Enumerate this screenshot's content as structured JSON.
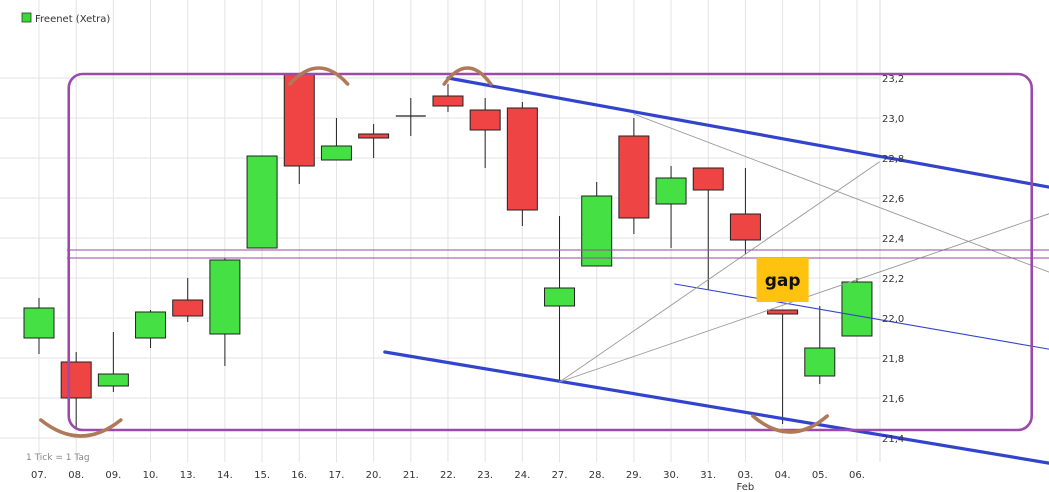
{
  "legend": {
    "label": "Freenet (Xetra)",
    "swatch_color": "#33dd33"
  },
  "note": "1 Tick = 1 Tag",
  "colors": {
    "up": "#44e044",
    "down": "#ee4444",
    "wick": "#222222",
    "channel": "#3344cc",
    "frame": "#9a4aaa",
    "arc": "#b07a5a",
    "fan": "#999999",
    "gap_fill": "#ffc20e",
    "grid": "#e3e3e3"
  },
  "chart_data": {
    "type": "candlestick",
    "title": "Freenet (Xetra)",
    "xlabel": "",
    "ylabel": "",
    "ylim": [
      21.35,
      23.3
    ],
    "grid": true,
    "categories": [
      "07.",
      "08.",
      "09.",
      "10.",
      "13.",
      "14.",
      "15.",
      "16.",
      "17.",
      "20.",
      "21.",
      "22.",
      "23.",
      "24.",
      "27.",
      "28.",
      "29.",
      "30.",
      "31.",
      "03.",
      "04.",
      "05.",
      "06."
    ],
    "x_sublabels": [
      {
        "index": 19,
        "text": "Feb"
      }
    ],
    "y_ticks": [
      21.4,
      21.6,
      21.8,
      22.0,
      22.2,
      22.4,
      22.6,
      22.8,
      23.0,
      23.2
    ],
    "y_tick_labels": [
      "21,4",
      "21,6",
      "21,8",
      "22,0",
      "22,2",
      "22,4",
      "22,6",
      "22,8",
      "23,0",
      "23,2"
    ],
    "ohlc": [
      {
        "open": 21.9,
        "high": 22.1,
        "low": 21.82,
        "close": 22.05
      },
      {
        "open": 21.78,
        "high": 21.83,
        "low": 21.45,
        "close": 21.6
      },
      {
        "open": 21.66,
        "high": 21.93,
        "low": 21.63,
        "close": 21.72
      },
      {
        "open": 21.9,
        "high": 22.04,
        "low": 21.85,
        "close": 22.03
      },
      {
        "open": 22.09,
        "high": 22.2,
        "low": 21.98,
        "close": 22.01
      },
      {
        "open": 21.92,
        "high": 22.3,
        "low": 21.76,
        "close": 22.29
      },
      {
        "open": 22.35,
        "high": 22.81,
        "low": 22.35,
        "close": 22.81
      },
      {
        "open": 23.22,
        "high": 23.22,
        "low": 22.67,
        "close": 22.76
      },
      {
        "open": 22.79,
        "high": 23.0,
        "low": 22.79,
        "close": 22.86
      },
      {
        "open": 22.92,
        "high": 22.97,
        "low": 22.8,
        "close": 22.9
      },
      {
        "open": 23.01,
        "high": 23.1,
        "low": 22.91,
        "close": 23.01
      },
      {
        "open": 23.11,
        "high": 23.17,
        "low": 23.03,
        "close": 23.06
      },
      {
        "open": 23.04,
        "high": 23.1,
        "low": 22.75,
        "close": 22.94
      },
      {
        "open": 23.05,
        "high": 23.08,
        "low": 22.46,
        "close": 22.54
      },
      {
        "open": 22.06,
        "high": 22.51,
        "low": 21.68,
        "close": 22.15
      },
      {
        "open": 22.26,
        "high": 22.68,
        "low": 22.26,
        "close": 22.61
      },
      {
        "open": 22.91,
        "high": 23.0,
        "low": 22.42,
        "close": 22.5
      },
      {
        "open": 22.57,
        "high": 22.76,
        "low": 22.35,
        "close": 22.7
      },
      {
        "open": 22.75,
        "high": 22.75,
        "low": 22.14,
        "close": 22.64
      },
      {
        "open": 22.52,
        "high": 22.75,
        "low": 22.32,
        "close": 22.39
      },
      {
        "open": 22.04,
        "high": 22.04,
        "low": 21.47,
        "close": 22.02
      },
      {
        "open": 21.71,
        "high": 22.06,
        "low": 21.67,
        "close": 21.85
      },
      {
        "open": 21.91,
        "high": 22.2,
        "low": 21.91,
        "close": 22.18
      }
    ],
    "annotations": [
      {
        "type": "text_box",
        "text": "gap",
        "x_from": 19.3,
        "x_to": 20.7,
        "y_from": 22.08,
        "y_to": 22.3
      },
      {
        "type": "trendline",
        "name": "upper-channel",
        "style": "channel",
        "points": [
          [
            11,
            23.2
          ],
          [
            27.3,
            22.65
          ]
        ]
      },
      {
        "type": "trendline",
        "name": "lower-channel",
        "style": "channel",
        "points": [
          [
            9.3,
            21.83
          ],
          [
            27.3,
            21.27
          ]
        ]
      },
      {
        "type": "trendline",
        "name": "mid-trendline",
        "style": "thin-blue",
        "points": [
          [
            17.1,
            22.17
          ],
          [
            27.3,
            21.84
          ]
        ]
      },
      {
        "type": "trendline",
        "name": "fan-line-1",
        "style": "fan",
        "points": [
          [
            14,
            21.68
          ],
          [
            22.6,
            22.78
          ]
        ]
      },
      {
        "type": "trendline",
        "name": "fan-line-2",
        "style": "fan",
        "points": [
          [
            14,
            21.68
          ],
          [
            27.3,
            22.53
          ]
        ]
      },
      {
        "type": "trendline",
        "name": "fan-line-3",
        "style": "fan",
        "points": [
          [
            16,
            23.02
          ],
          [
            27.3,
            22.22
          ]
        ]
      },
      {
        "type": "hline",
        "name": "horizontal-line-1",
        "style": "frame",
        "y": 22.34
      },
      {
        "type": "hline",
        "name": "horizontal-line-2",
        "style": "frame",
        "y": 22.3
      },
      {
        "type": "rounded_rect",
        "name": "range-frame",
        "style": "frame",
        "x_from": 0.8,
        "x_to": 26.7,
        "y_from": 21.44,
        "y_to": 23.22
      },
      {
        "type": "arc",
        "name": "top-arc-1",
        "style": "arc",
        "orientation": "top",
        "x_from": 6.75,
        "x_to": 8.3,
        "y": 23.17
      },
      {
        "type": "arc",
        "name": "top-arc-2",
        "style": "arc",
        "orientation": "top",
        "x_from": 10.9,
        "x_to": 12.15,
        "y": 23.17
      },
      {
        "type": "arc",
        "name": "bottom-arc-1",
        "style": "arc",
        "orientation": "bottom",
        "x_from": 0.05,
        "x_to": 2.2,
        "y": 21.49
      },
      {
        "type": "arc",
        "name": "bottom-arc-2",
        "style": "arc",
        "orientation": "bottom",
        "x_from": 19.2,
        "x_to": 21.2,
        "y": 21.51
      }
    ]
  }
}
